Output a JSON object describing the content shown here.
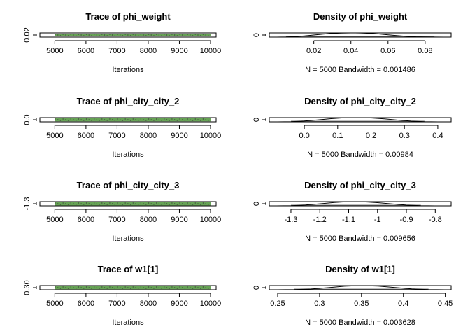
{
  "chart_data": [
    {
      "type": "line",
      "title": "Trace of phi_weight",
      "xlabel": "Iterations",
      "xlim": [
        4520,
        10180
      ],
      "xticks": [
        5000,
        6000,
        7000,
        8000,
        9000,
        10000
      ],
      "ylim": [
        0.0,
        0.095
      ],
      "yticks": [
        0.02
      ],
      "x_range": [
        5001,
        10000
      ],
      "band": [
        0.015,
        0.078
      ],
      "colors": {
        "series": "#66a355",
        "axes": "#000000"
      }
    },
    {
      "type": "line",
      "title": "Density of phi_weight",
      "xlabel": "N = 5000   Bandwidth = 0.001486",
      "xlim": [
        -0.004,
        0.094
      ],
      "xticks": [
        0.02,
        0.04,
        0.06,
        0.08
      ],
      "ylim": [
        0,
        1
      ],
      "yticks": [
        0
      ],
      "x": [
        0.0,
        0.005,
        0.01,
        0.015,
        0.02,
        0.025,
        0.03,
        0.035,
        0.04,
        0.045,
        0.05,
        0.055,
        0.06,
        0.065,
        0.07,
        0.075,
        0.08,
        0.085,
        0.09
      ],
      "y": [
        0.0,
        0.03,
        0.12,
        0.28,
        0.5,
        0.72,
        0.88,
        0.97,
        1.0,
        0.98,
        0.9,
        0.75,
        0.55,
        0.35,
        0.18,
        0.08,
        0.03,
        0.01,
        0.0
      ]
    },
    {
      "type": "line",
      "title": "Trace of phi_city_city_2",
      "xlabel": "Iterations",
      "xlim": [
        4520,
        10180
      ],
      "xticks": [
        5000,
        6000,
        7000,
        8000,
        9000,
        10000
      ],
      "ylim": [
        -0.12,
        0.44
      ],
      "yticks": [
        0.0
      ],
      "x_range": [
        5001,
        10000
      ],
      "band": [
        -0.05,
        0.38
      ],
      "colors": {
        "series": "#66a355",
        "axes": "#000000"
      }
    },
    {
      "type": "line",
      "title": "Density of phi_city_city_2",
      "xlabel": "N = 5000   Bandwidth = 0.00984",
      "xlim": [
        -0.105,
        0.44
      ],
      "xticks": [
        0.0,
        0.1,
        0.2,
        0.3,
        0.4
      ],
      "ylim": [
        0,
        1
      ],
      "yticks": [
        0
      ],
      "x": [
        -0.08,
        -0.04,
        0.0,
        0.04,
        0.08,
        0.12,
        0.16,
        0.2,
        0.24,
        0.28,
        0.32,
        0.36,
        0.4
      ],
      "y": [
        0.0,
        0.05,
        0.2,
        0.45,
        0.75,
        0.95,
        1.0,
        0.92,
        0.7,
        0.42,
        0.18,
        0.05,
        0.0
      ]
    },
    {
      "type": "line",
      "title": "Trace of phi_city_city_3",
      "xlabel": "Iterations",
      "xlim": [
        4520,
        10180
      ],
      "xticks": [
        5000,
        6000,
        7000,
        8000,
        9000,
        10000
      ],
      "ylim": [
        -1.38,
        -0.74
      ],
      "yticks": [
        -1.3
      ],
      "x_range": [
        5001,
        10000
      ],
      "band": [
        -1.32,
        -0.82
      ],
      "colors": {
        "series": "#66a355",
        "axes": "#000000"
      }
    },
    {
      "type": "line",
      "title": "Density of phi_city_city_3",
      "xlabel": "N = 5000   Bandwidth = 0.009656",
      "xlim": [
        -1.375,
        -0.745
      ],
      "xticks": [
        -1.3,
        -1.2,
        -1.1,
        -1.0,
        -0.9,
        -0.8
      ],
      "ylim": [
        0,
        1
      ],
      "yticks": [
        0
      ],
      "x": [
        -1.35,
        -1.3,
        -1.25,
        -1.2,
        -1.15,
        -1.1,
        -1.05,
        -1.0,
        -0.95,
        -0.9,
        -0.85,
        -0.8
      ],
      "y": [
        0.0,
        0.05,
        0.2,
        0.48,
        0.8,
        1.0,
        0.97,
        0.75,
        0.45,
        0.18,
        0.05,
        0.0
      ]
    },
    {
      "type": "line",
      "title": "Trace of w1[1]",
      "xlabel": "Iterations",
      "xlim": [
        4520,
        10180
      ],
      "xticks": [
        5000,
        6000,
        7000,
        8000,
        9000,
        10000
      ],
      "ylim": [
        0.245,
        0.455
      ],
      "yticks": [
        0.3
      ],
      "y_tick_labels": [
        "0.30"
      ],
      "x_range": [
        5001,
        10000
      ],
      "band": [
        0.27,
        0.43
      ],
      "colors": {
        "series": "#66a355",
        "axes": "#000000"
      }
    },
    {
      "type": "line",
      "title": "Density of w1[1]",
      "xlabel": "N = 5000   Bandwidth = 0.003628",
      "xlim": [
        0.24,
        0.457
      ],
      "xticks": [
        0.25,
        0.3,
        0.35,
        0.4,
        0.45
      ],
      "ylim": [
        0,
        1
      ],
      "yticks": [
        0
      ],
      "x": [
        0.25,
        0.27,
        0.29,
        0.31,
        0.33,
        0.35,
        0.37,
        0.39,
        0.41,
        0.43,
        0.45
      ],
      "y": [
        0.0,
        0.04,
        0.18,
        0.5,
        0.85,
        1.0,
        0.88,
        0.55,
        0.22,
        0.05,
        0.0
      ]
    }
  ]
}
